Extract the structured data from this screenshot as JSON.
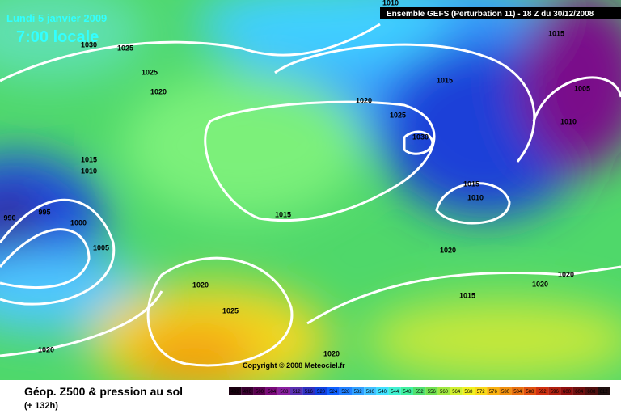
{
  "header": {
    "date": "Lundi 5 janvier 2009",
    "time": "7:00 locale",
    "run": "Ensemble GEFS (Perturbation 11)  -  18 Z du 30/12/2008"
  },
  "isobar_labels": [
    1010,
    1015,
    1030,
    1025,
    1025,
    1020,
    1015,
    1005,
    1020,
    1025,
    1010,
    1030,
    1015,
    1010,
    1015,
    1010,
    990,
    995,
    1000,
    1015,
    1005,
    1020,
    1020,
    1020,
    1020,
    1015,
    1025,
    1020,
    1020
  ],
  "copyright": "Copyright © 2008 Meteociel.fr",
  "footer": {
    "title": "Géop. Z500 & pression au sol",
    "lead": "(+ 132h)"
  },
  "legend": {
    "values": [
      492,
      496,
      500,
      504,
      508,
      512,
      516,
      520,
      524,
      528,
      532,
      536,
      540,
      544,
      548,
      552,
      556,
      560,
      564,
      568,
      572,
      576,
      580,
      584,
      588,
      592,
      596,
      600,
      604,
      608,
      612
    ]
  }
}
